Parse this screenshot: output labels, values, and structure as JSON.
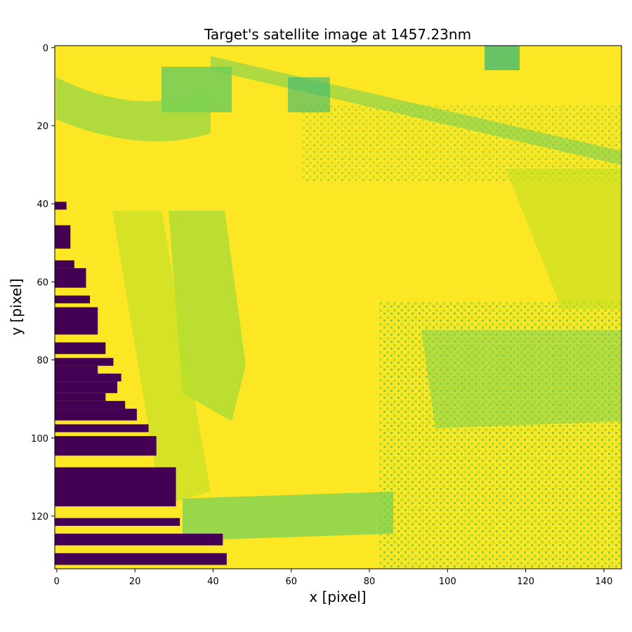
{
  "chart_data": {
    "type": "heatmap",
    "title": "Target's satellite image at 1457.23nm",
    "xlabel": "x [pixel]",
    "ylabel": "y [pixel]",
    "xlim": [
      -0.5,
      144.5
    ],
    "ylim": [
      133.5,
      -0.5
    ],
    "x_ticks": [
      0,
      20,
      40,
      60,
      80,
      100,
      120,
      140
    ],
    "y_ticks": [
      0,
      20,
      40,
      60,
      80,
      100,
      120
    ],
    "x_tick_labels": [
      "0",
      "20",
      "40",
      "60",
      "80",
      "100",
      "120",
      "140"
    ],
    "y_tick_labels": [
      "0",
      "20",
      "40",
      "60",
      "80",
      "100",
      "120"
    ],
    "grid": false,
    "colormap": "viridis",
    "image_size": {
      "columns": 145,
      "rows": 134
    },
    "colors": {
      "low": "#440154",
      "mid": "#21918c",
      "high": "#fde725",
      "yellow_green": "#b5de2b",
      "green": "#6ece58"
    },
    "masked_dark_rows": [
      {
        "y_start": 40,
        "y_end": 41,
        "x_end": 2
      },
      {
        "y_start": 46,
        "y_end": 51,
        "x_end": 3
      },
      {
        "y_start": 55,
        "y_end": 56,
        "x_end": 4
      },
      {
        "y_start": 57,
        "y_end": 61,
        "x_end": 7
      },
      {
        "y_start": 64,
        "y_end": 65,
        "x_end": 8
      },
      {
        "y_start": 67,
        "y_end": 73,
        "x_end": 10
      },
      {
        "y_start": 76,
        "y_end": 78,
        "x_end": 12
      },
      {
        "y_start": 80,
        "y_end": 81,
        "x_end": 14
      },
      {
        "y_start": 82,
        "y_end": 83,
        "x_end": 10
      },
      {
        "y_start": 84,
        "y_end": 85,
        "x_end": 16
      },
      {
        "y_start": 86,
        "y_end": 88,
        "x_end": 15
      },
      {
        "y_start": 89,
        "y_end": 90,
        "x_end": 12
      },
      {
        "y_start": 91,
        "y_end": 92,
        "x_end": 17
      },
      {
        "y_start": 93,
        "y_end": 95,
        "x_end": 20
      },
      {
        "y_start": 97,
        "y_end": 98,
        "x_end": 23
      },
      {
        "y_start": 100,
        "y_end": 104,
        "x_end": 25
      },
      {
        "y_start": 108,
        "y_end": 117,
        "x_end": 30
      },
      {
        "y_start": 121,
        "y_end": 122,
        "x_end": 31
      },
      {
        "y_start": 125,
        "y_end": 127,
        "x_end": 42
      },
      {
        "y_start": 130,
        "y_end": 132,
        "x_end": 43
      }
    ]
  }
}
